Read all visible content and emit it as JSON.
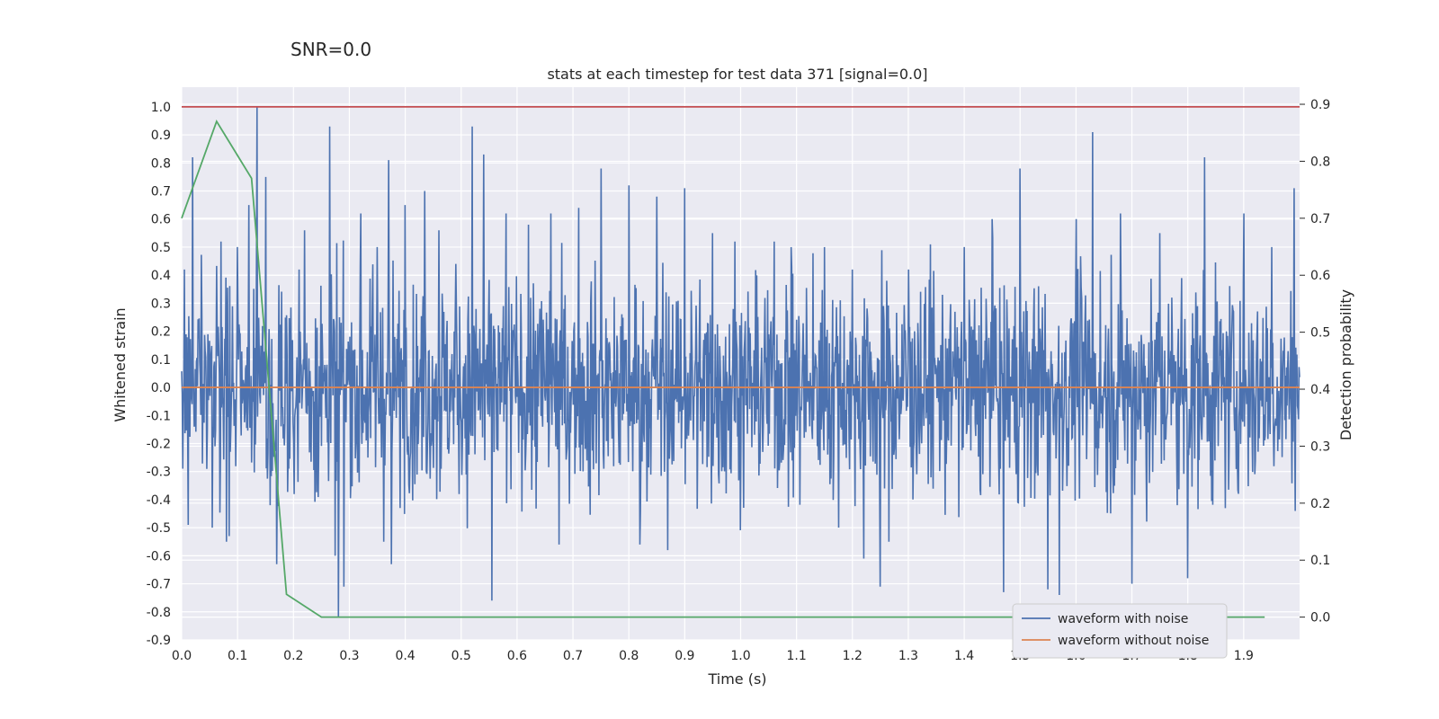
{
  "chart_data": {
    "type": "line",
    "suptitle": "SNR=0.0",
    "title": "stats at each timestep for test data 371 [signal=0.0]",
    "xlabel": "Time (s)",
    "ylabel": "Whitened strain",
    "y2label": "Detection probability",
    "xlim": [
      0.0,
      2.0
    ],
    "ylim": [
      -0.9,
      1.07
    ],
    "y2lim": [
      -0.04,
      0.93
    ],
    "x_ticks": [
      "0.0",
      "0.1",
      "0.2",
      "0.3",
      "0.4",
      "0.5",
      "0.6",
      "0.7",
      "0.8",
      "0.9",
      "1.0",
      "1.1",
      "1.2",
      "1.3",
      "1.4",
      "1.5",
      "1.6",
      "1.7",
      "1.8",
      "1.9"
    ],
    "y_ticks": [
      "1.0",
      "0.9",
      "0.8",
      "0.7",
      "0.6",
      "0.5",
      "0.4",
      "0.3",
      "0.2",
      "0.1",
      "0.0",
      "-0.1",
      "-0.2",
      "-0.3",
      "-0.4",
      "-0.5",
      "-0.6",
      "-0.7",
      "-0.8",
      "-0.9"
    ],
    "y2_ticks": [
      "0.9",
      "0.8",
      "0.7",
      "0.6",
      "0.5",
      "0.4",
      "0.3",
      "0.2",
      "0.1",
      "0.0"
    ],
    "grid": true,
    "legend_position": "lower right",
    "series": [
      {
        "name": "waveform with noise",
        "color": "#4c72b0",
        "axis": "left",
        "description": "dense noise trace, approx 2048 samples over 2 s",
        "peaks": [
          [
            0.005,
            0.42
          ],
          [
            0.012,
            -0.49
          ],
          [
            0.02,
            0.82
          ],
          [
            0.055,
            -0.5
          ],
          [
            0.07,
            0.52
          ],
          [
            0.085,
            -0.53
          ],
          [
            0.1,
            0.5
          ],
          [
            0.12,
            0.65
          ],
          [
            0.135,
            1.0
          ],
          [
            0.15,
            0.75
          ],
          [
            0.158,
            -0.42
          ],
          [
            0.17,
            -0.63
          ],
          [
            0.21,
            0.42
          ],
          [
            0.22,
            0.56
          ],
          [
            0.265,
            0.93
          ],
          [
            0.275,
            -0.6
          ],
          [
            0.28,
            -0.82
          ],
          [
            0.29,
            -0.71
          ],
          [
            0.32,
            0.62
          ],
          [
            0.35,
            0.5
          ],
          [
            0.37,
            0.81
          ],
          [
            0.375,
            -0.63
          ],
          [
            0.4,
            0.65
          ],
          [
            0.435,
            0.7
          ],
          [
            0.46,
            0.56
          ],
          [
            0.49,
            0.44
          ],
          [
            0.52,
            0.93
          ],
          [
            0.54,
            0.83
          ],
          [
            0.555,
            -0.76
          ],
          [
            0.58,
            0.62
          ],
          [
            0.62,
            0.58
          ],
          [
            0.66,
            0.62
          ],
          [
            0.675,
            -0.56
          ],
          [
            0.71,
            0.64
          ],
          [
            0.75,
            0.78
          ],
          [
            0.8,
            0.72
          ],
          [
            0.82,
            -0.56
          ],
          [
            0.85,
            0.68
          ],
          [
            0.87,
            -0.58
          ],
          [
            0.9,
            0.71
          ],
          [
            0.95,
            0.55
          ],
          [
            0.99,
            0.52
          ],
          [
            1.06,
            0.52
          ],
          [
            1.09,
            0.5
          ],
          [
            1.15,
            0.5
          ],
          [
            1.2,
            0.42
          ],
          [
            1.22,
            -0.61
          ],
          [
            1.25,
            -0.71
          ],
          [
            1.3,
            0.42
          ],
          [
            1.34,
            0.51
          ],
          [
            1.4,
            0.5
          ],
          [
            1.45,
            0.6
          ],
          [
            1.47,
            -0.73
          ],
          [
            1.5,
            0.78
          ],
          [
            1.55,
            -0.72
          ],
          [
            1.57,
            -0.74
          ],
          [
            1.6,
            0.6
          ],
          [
            1.63,
            0.91
          ],
          [
            1.68,
            0.62
          ],
          [
            1.7,
            -0.7
          ],
          [
            1.75,
            0.55
          ],
          [
            1.8,
            -0.68
          ],
          [
            1.83,
            0.82
          ],
          [
            1.9,
            0.62
          ],
          [
            1.95,
            0.5
          ],
          [
            1.99,
            0.71
          ]
        ]
      },
      {
        "name": "waveform without noise",
        "color": "#dd8452",
        "axis": "left",
        "x": [
          0.0,
          2.0
        ],
        "y": [
          0.0,
          0.0
        ]
      },
      {
        "name": "",
        "color": "#55a868",
        "axis": "right",
        "x": [
          0.0,
          0.0625,
          0.125,
          0.1875,
          0.25,
          0.3125,
          0.375,
          0.4375,
          0.5,
          0.5625,
          0.625,
          0.6875,
          0.75,
          0.8125,
          0.875,
          0.9375,
          1.0,
          1.0625,
          1.125,
          1.1875,
          1.25,
          1.3125,
          1.375,
          1.4375,
          1.5,
          1.5625,
          1.625,
          1.6875,
          1.75,
          1.8125,
          1.875,
          1.9375
        ],
        "y": [
          0.7,
          0.87,
          0.77,
          0.04,
          0.0,
          0.0,
          0.0,
          0.0,
          0.0,
          0.0,
          0.0,
          0.0,
          0.0,
          0.0,
          0.0,
          0.0,
          0.0,
          0.0,
          0.0,
          0.0,
          0.0,
          0.0,
          0.0,
          0.0,
          0.0,
          0.0,
          0.0,
          0.0,
          0.0,
          0.0,
          0.0,
          0.0
        ]
      },
      {
        "name": "",
        "color": "#c44e52",
        "axis": "left",
        "x": [
          0.0,
          2.0
        ],
        "y": [
          1.0,
          1.0
        ]
      }
    ]
  }
}
